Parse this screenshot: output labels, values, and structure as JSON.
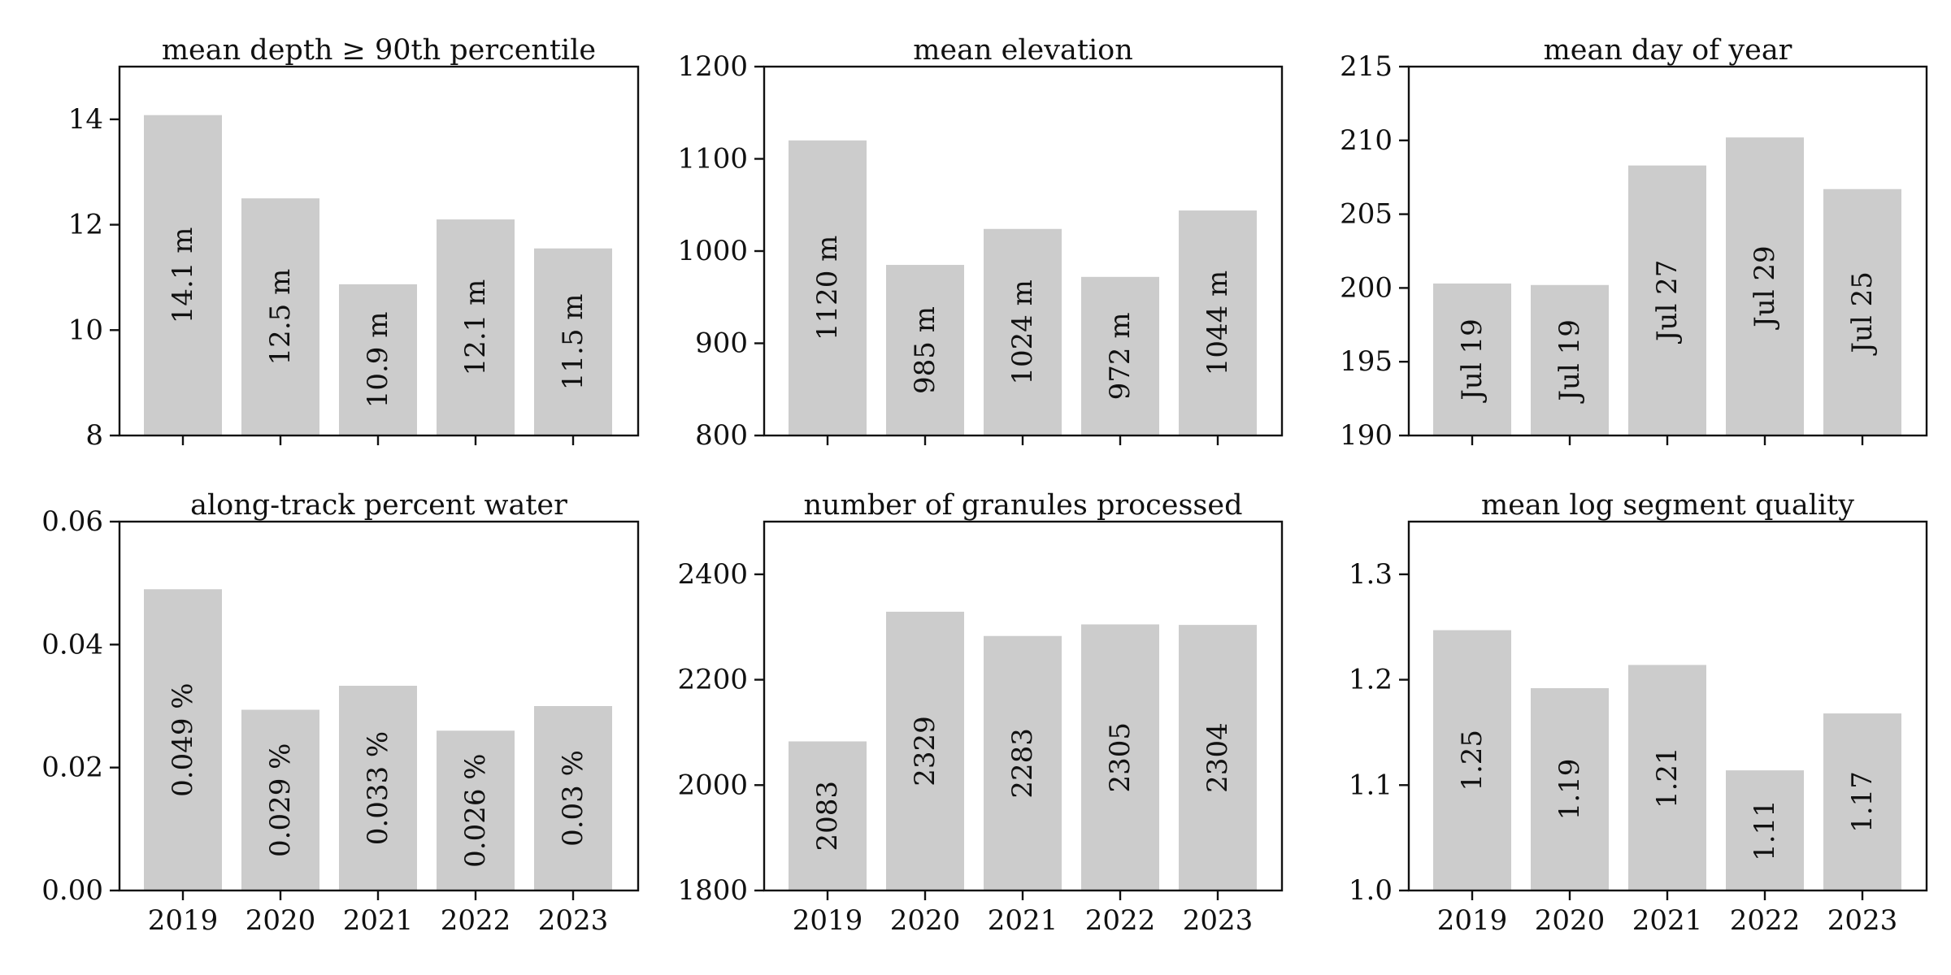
{
  "chart_data": [
    {
      "type": "bar",
      "title": "mean depth ≥ 90th percentile",
      "categories": [
        "2019",
        "2020",
        "2021",
        "2022",
        "2023"
      ],
      "values": [
        14.08,
        12.5,
        10.87,
        12.1,
        11.55
      ],
      "labels": [
        "14.1 m",
        "12.5 m",
        "10.9 m",
        "12.1 m",
        "11.5 m"
      ],
      "ylim": [
        8,
        15
      ],
      "yticks": [
        8,
        10,
        12,
        14
      ],
      "ytick_labels": [
        "8",
        "10",
        "12",
        "14"
      ],
      "xtick_labels_visible": false,
      "bar_color": "#cccccc"
    },
    {
      "type": "bar",
      "title": "mean elevation",
      "categories": [
        "2019",
        "2020",
        "2021",
        "2022",
        "2023"
      ],
      "values": [
        1120,
        985,
        1024,
        972,
        1044
      ],
      "labels": [
        "1120 m",
        "985 m",
        "1024 m",
        "972 m",
        "1044 m"
      ],
      "ylim": [
        800,
        1200
      ],
      "yticks": [
        800,
        900,
        1000,
        1100,
        1200
      ],
      "ytick_labels": [
        "800",
        "900",
        "1000",
        "1100",
        "1200"
      ],
      "xtick_labels_visible": false,
      "bar_color": "#cccccc"
    },
    {
      "type": "bar",
      "title": "mean day of year",
      "categories": [
        "2019",
        "2020",
        "2021",
        "2022",
        "2023"
      ],
      "values": [
        200.3,
        200.2,
        208.3,
        210.2,
        206.7
      ],
      "labels": [
        "Jul 19",
        "Jul 19",
        "Jul 27",
        "Jul 29",
        "Jul 25"
      ],
      "ylim": [
        190,
        215
      ],
      "yticks": [
        190,
        195,
        200,
        205,
        210,
        215
      ],
      "ytick_labels": [
        "190",
        "195",
        "200",
        "205",
        "210",
        "215"
      ],
      "xtick_labels_visible": false,
      "bar_color": "#cccccc"
    },
    {
      "type": "bar",
      "title": "along-track percent water",
      "categories": [
        "2019",
        "2020",
        "2021",
        "2022",
        "2023"
      ],
      "values": [
        0.049,
        0.0294,
        0.0333,
        0.026,
        0.03
      ],
      "labels": [
        "0.049 %",
        "0.029 %",
        "0.033 %",
        "0.026 %",
        "0.03 %"
      ],
      "ylim": [
        0,
        0.06
      ],
      "yticks": [
        0,
        0.02,
        0.04,
        0.06
      ],
      "ytick_labels": [
        "0.00",
        "0.02",
        "0.04",
        "0.06"
      ],
      "xtick_labels_visible": true,
      "bar_color": "#cccccc"
    },
    {
      "type": "bar",
      "title": "number of granules processed",
      "categories": [
        "2019",
        "2020",
        "2021",
        "2022",
        "2023"
      ],
      "values": [
        2083,
        2329,
        2283,
        2305,
        2304
      ],
      "labels": [
        "2083",
        "2329",
        "2283",
        "2305",
        "2304"
      ],
      "ylim": [
        1800,
        2500
      ],
      "yticks": [
        1800,
        2000,
        2200,
        2400
      ],
      "ytick_labels": [
        "1800",
        "2000",
        "2200",
        "2400"
      ],
      "xtick_labels_visible": true,
      "bar_color": "#cccccc"
    },
    {
      "type": "bar",
      "title": "mean log segment quality",
      "categories": [
        "2019",
        "2020",
        "2021",
        "2022",
        "2023"
      ],
      "values": [
        1.247,
        1.192,
        1.214,
        1.114,
        1.168
      ],
      "labels": [
        "1.25",
        "1.19",
        "1.21",
        "1.11",
        "1.17"
      ],
      "ylim": [
        1.0,
        1.35
      ],
      "yticks": [
        1.0,
        1.1,
        1.2,
        1.3
      ],
      "ytick_labels": [
        "1.0",
        "1.1",
        "1.2",
        "1.3"
      ],
      "xtick_labels_visible": true,
      "bar_color": "#cccccc"
    }
  ]
}
